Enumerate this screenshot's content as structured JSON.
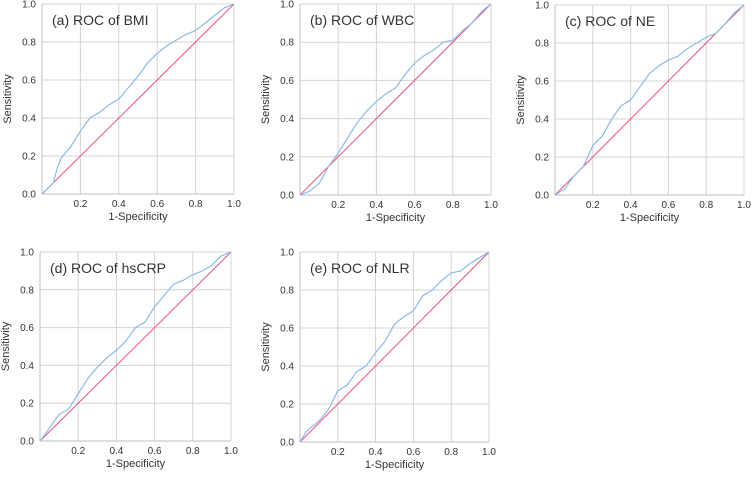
{
  "colors": {
    "roc_curve": "#8fb9ea",
    "reference_line": "#e8557a",
    "grid": "#d4d4d4"
  },
  "chart_data": [
    {
      "type": "line",
      "title": "(a) ROC of BMI",
      "xlabel": "1-Specificity",
      "ylabel": "Sensitivity",
      "xlim": [
        0,
        1
      ],
      "ylim": [
        0,
        1
      ],
      "grid": true,
      "xticks": [
        "0.2",
        "0.4",
        "0.6",
        "0.8",
        "1.0"
      ],
      "yticks": [
        "0.0",
        "0.2",
        "0.4",
        "0.6",
        "0.8",
        "1.0"
      ],
      "series": [
        {
          "x": [
            0,
            0.04,
            0.06,
            0.08,
            0.1,
            0.15,
            0.2,
            0.25,
            0.3,
            0.35,
            0.4,
            0.45,
            0.5,
            0.55,
            0.6,
            0.65,
            0.7,
            0.75,
            0.8,
            0.85,
            0.9,
            0.95,
            1
          ],
          "y": [
            0,
            0.04,
            0.06,
            0.14,
            0.19,
            0.25,
            0.33,
            0.4,
            0.43,
            0.47,
            0.5,
            0.56,
            0.62,
            0.69,
            0.74,
            0.78,
            0.81,
            0.84,
            0.86,
            0.9,
            0.94,
            0.98,
            1
          ]
        },
        {
          "x": [
            0,
            1
          ],
          "y": [
            0,
            1
          ]
        }
      ]
    },
    {
      "type": "line",
      "title": "(b) ROC of WBC",
      "xlabel": "1-Specificity",
      "ylabel": "Sensitivity",
      "xlim": [
        0,
        1
      ],
      "ylim": [
        0,
        1
      ],
      "grid": true,
      "xticks": [
        "0.2",
        "0.4",
        "0.6",
        "0.8",
        "1.0"
      ],
      "yticks": [
        "0.0",
        "0.2",
        "0.4",
        "0.6",
        "0.8",
        "1.0"
      ],
      "series": [
        {
          "x": [
            0,
            0.05,
            0.1,
            0.15,
            0.2,
            0.25,
            0.3,
            0.35,
            0.4,
            0.45,
            0.5,
            0.55,
            0.6,
            0.65,
            0.7,
            0.75,
            0.8,
            0.85,
            0.9,
            0.95,
            1
          ],
          "y": [
            0,
            0.02,
            0.06,
            0.15,
            0.22,
            0.3,
            0.38,
            0.44,
            0.49,
            0.53,
            0.56,
            0.63,
            0.69,
            0.73,
            0.76,
            0.8,
            0.81,
            0.86,
            0.9,
            0.96,
            1
          ]
        },
        {
          "x": [
            0,
            1
          ],
          "y": [
            0,
            1
          ]
        }
      ]
    },
    {
      "type": "line",
      "title": "(c) ROC of NE",
      "xlabel": "1-Specificity",
      "ylabel": "Sensitivity",
      "xlim": [
        0,
        1
      ],
      "ylim": [
        0,
        1
      ],
      "grid": true,
      "xticks": [
        "0.2",
        "0.4",
        "0.6",
        "0.8",
        "1.0"
      ],
      "yticks": [
        "0.0",
        "0.2",
        "0.4",
        "0.6",
        "0.8",
        "1.0"
      ],
      "series": [
        {
          "x": [
            0,
            0.05,
            0.1,
            0.15,
            0.2,
            0.25,
            0.3,
            0.35,
            0.4,
            0.45,
            0.5,
            0.55,
            0.6,
            0.65,
            0.7,
            0.75,
            0.8,
            0.85,
            0.9,
            0.95,
            1
          ],
          "y": [
            0,
            0.03,
            0.1,
            0.15,
            0.26,
            0.31,
            0.4,
            0.47,
            0.5,
            0.57,
            0.64,
            0.68,
            0.71,
            0.73,
            0.77,
            0.8,
            0.83,
            0.85,
            0.9,
            0.96,
            1
          ]
        },
        {
          "x": [
            0,
            1
          ],
          "y": [
            0,
            1
          ]
        }
      ]
    },
    {
      "type": "line",
      "title": "(d) ROC of hsCRP",
      "xlabel": "1-Specificity",
      "ylabel": "Sensitivity",
      "xlim": [
        0,
        1
      ],
      "ylim": [
        0,
        1
      ],
      "grid": true,
      "xticks": [
        "0.2",
        "0.4",
        "0.6",
        "0.8",
        "1.0"
      ],
      "yticks": [
        "0.0",
        "0.2",
        "0.4",
        "0.6",
        "0.8",
        "1.0"
      ],
      "series": [
        {
          "x": [
            0,
            0.03,
            0.05,
            0.1,
            0.15,
            0.2,
            0.25,
            0.3,
            0.35,
            0.4,
            0.45,
            0.5,
            0.55,
            0.6,
            0.65,
            0.7,
            0.75,
            0.8,
            0.85,
            0.9,
            0.95,
            1
          ],
          "y": [
            0,
            0.04,
            0.07,
            0.14,
            0.17,
            0.25,
            0.33,
            0.39,
            0.44,
            0.48,
            0.53,
            0.6,
            0.63,
            0.71,
            0.77,
            0.83,
            0.85,
            0.88,
            0.9,
            0.93,
            0.98,
            1
          ]
        },
        {
          "x": [
            0,
            1
          ],
          "y": [
            0,
            1
          ]
        }
      ]
    },
    {
      "type": "line",
      "title": "(e) ROC of NLR",
      "xlabel": "1-Specificity",
      "ylabel": "Sensitivity",
      "xlim": [
        0,
        1
      ],
      "ylim": [
        0,
        1
      ],
      "grid": true,
      "xticks": [
        "0.2",
        "0.4",
        "0.6",
        "0.8",
        "1.0"
      ],
      "yticks": [
        "0.0",
        "0.2",
        "0.4",
        "0.6",
        "0.8",
        "1.0"
      ],
      "series": [
        {
          "x": [
            0,
            0.03,
            0.05,
            0.1,
            0.15,
            0.2,
            0.25,
            0.3,
            0.35,
            0.4,
            0.45,
            0.5,
            0.55,
            0.6,
            0.65,
            0.7,
            0.75,
            0.8,
            0.85,
            0.9,
            0.95,
            1
          ],
          "y": [
            0,
            0.05,
            0.07,
            0.11,
            0.17,
            0.27,
            0.3,
            0.37,
            0.4,
            0.47,
            0.53,
            0.62,
            0.66,
            0.69,
            0.77,
            0.8,
            0.85,
            0.89,
            0.9,
            0.94,
            0.97,
            1
          ]
        },
        {
          "x": [
            0,
            1
          ],
          "y": [
            0,
            1
          ]
        }
      ]
    }
  ]
}
